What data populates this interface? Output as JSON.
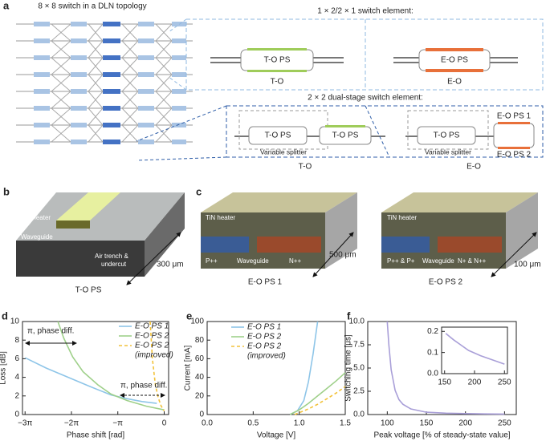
{
  "panel_a": {
    "label": "a",
    "network_title": "8 × 8 switch in a DLN topology",
    "element_title": "1 × 2/2 × 1 switch element:",
    "to_ps": "T-O PS",
    "eo_ps": "E-O PS",
    "to_caption": "T-O",
    "eo_caption": "E-O",
    "dual_title": "2 × 2 dual-stage switch element:",
    "dual_to_ps_1": "T-O PS",
    "dual_to_ps_2": "T-O PS",
    "dual_splitter_to": "Variable splitter",
    "dual_to_caption": "T-O",
    "dual_eo_to_ps": "T-O PS",
    "dual_splitter_eo": "Variable splitter",
    "dual_eo_ps_1": "E-O PS 1",
    "dual_eo_ps_2": "E-O PS 2",
    "dual_eo_caption": "E-O"
  },
  "panel_b": {
    "label": "b",
    "heater": "TiN heater",
    "waveguide": "Waveguide",
    "trench_lines": [
      "Air trench &",
      "undercut"
    ],
    "length": "300 μm",
    "caption": "T-O PS"
  },
  "panel_c": {
    "label": "c",
    "ps1": {
      "heater": "TiN heater",
      "p": "P++",
      "waveguide": "Waveguide",
      "n": "N++",
      "length": "500 μm",
      "caption": "E-O PS 1"
    },
    "ps2": {
      "heater": "TiN heater",
      "p": "P++ & P+",
      "waveguide": "Waveguide",
      "n": "N+ & N++",
      "length": "100 μm",
      "caption": "E-O PS 2"
    }
  },
  "chart_data": [
    {
      "type": "line",
      "label": "d",
      "xlabel": "Phase shift [rad]",
      "ylabel": "Loss [dB]",
      "xlim": [
        -9.6,
        0.3
      ],
      "ylim": [
        0,
        10
      ],
      "xticks": [
        {
          "value": -9.4248,
          "label": "−3π"
        },
        {
          "value": -6.2832,
          "label": "−2π"
        },
        {
          "value": -3.1416,
          "label": "−π"
        },
        0
      ],
      "yticks": [
        0,
        2,
        4,
        6,
        8,
        10
      ],
      "annotations": [
        "π, phase diff.",
        "π, phase diff."
      ],
      "series": [
        {
          "name": "E-O PS 1",
          "color": "#8ec5e8",
          "dash": false,
          "x": [
            -9.42,
            -8,
            -6.5,
            -5,
            -3.6,
            -2.5,
            -1.5,
            -0.5
          ],
          "values": [
            6.1,
            5.0,
            4.0,
            3.0,
            2.1,
            1.7,
            1.4,
            1.2
          ]
        },
        {
          "name": "E-O PS 2",
          "color": "#9fd08a",
          "dash": false,
          "x": [
            -7.2,
            -6.8,
            -6.2,
            -5.5,
            -4.5,
            -3.6,
            -2.5,
            -1.2,
            0
          ],
          "values": [
            10,
            8.2,
            6.2,
            4.6,
            3.2,
            2.2,
            1.5,
            0.9,
            0.5
          ]
        },
        {
          "name": "E-O PS 2",
          "name_note": "(improved)",
          "color": "#f2c23a",
          "dash": true,
          "x": [
            -0.95,
            -0.8,
            -0.6,
            -0.4,
            -0.2,
            0
          ],
          "values": [
            10,
            6,
            3.2,
            1.8,
            0.9,
            0.4
          ]
        }
      ]
    },
    {
      "type": "line",
      "label": "e",
      "xlabel": "Voltage [V]",
      "ylabel": "Current [mA]",
      "xlim": [
        0,
        1.5
      ],
      "ylim": [
        0,
        100
      ],
      "xticks": [
        {
          "value": 0,
          "label": "0.0"
        },
        {
          "value": 0.5,
          "label": "0.5"
        },
        {
          "value": 1,
          "label": "1.0"
        },
        {
          "value": 1.5,
          "label": "1.5"
        }
      ],
      "yticks": [
        0,
        20,
        40,
        60,
        80,
        100
      ],
      "series": [
        {
          "name": "E-O PS 1",
          "color": "#8ec5e8",
          "dash": false,
          "x": [
            0.9,
            0.98,
            1.05,
            1.1,
            1.15,
            1.2
          ],
          "values": [
            0,
            4,
            15,
            35,
            65,
            100
          ]
        },
        {
          "name": "E-O PS 2",
          "color": "#9fd08a",
          "dash": false,
          "x": [
            0.9,
            1.0,
            1.1,
            1.2,
            1.3,
            1.4,
            1.5
          ],
          "values": [
            0,
            5,
            12,
            20,
            28,
            36,
            45
          ]
        },
        {
          "name": "E-O PS 2",
          "name_note": "(improved)",
          "color": "#f2c23a",
          "dash": true,
          "x": [
            0.95,
            1.1,
            1.2,
            1.3,
            1.4,
            1.5
          ],
          "values": [
            0,
            6,
            11,
            17,
            23,
            30
          ]
        }
      ]
    },
    {
      "type": "line",
      "label": "f",
      "xlabel": "Peak voltage [% of steady-state value]",
      "ylabel": "Switching time [μs]",
      "xlim": [
        75,
        265
      ],
      "ylim": [
        0,
        10
      ],
      "xticks": [
        100,
        150,
        200,
        250
      ],
      "yticks": [
        {
          "value": 0,
          "label": "0.0"
        },
        {
          "value": 2.5,
          "label": "2.5"
        },
        {
          "value": 5,
          "label": "5.0"
        },
        {
          "value": 7.5,
          "label": "7.5"
        },
        {
          "value": 10,
          "label": "10.0"
        }
      ],
      "series": [
        {
          "color": "#a99fd8",
          "dash": false,
          "x": [
            100,
            102,
            105,
            110,
            115,
            120,
            130,
            150,
            175,
            200,
            225,
            250
          ],
          "values": [
            10,
            7.5,
            4.8,
            2.6,
            1.6,
            1.1,
            0.6,
            0.25,
            0.15,
            0.1,
            0.07,
            0.05
          ]
        }
      ]
    },
    {
      "type": "line",
      "xlim": [
        145,
        255
      ],
      "ylim": [
        0,
        0.22
      ],
      "xticks": [
        150,
        200,
        250
      ],
      "yticks": [
        {
          "value": 0,
          "label": "0.0"
        },
        0.1,
        0.2
      ],
      "series": [
        {
          "color": "#a99fd8",
          "dash": false,
          "x": [
            152,
            165,
            175,
            190,
            210,
            230,
            250
          ],
          "values": [
            0.19,
            0.16,
            0.14,
            0.11,
            0.085,
            0.065,
            0.045
          ]
        }
      ]
    }
  ]
}
